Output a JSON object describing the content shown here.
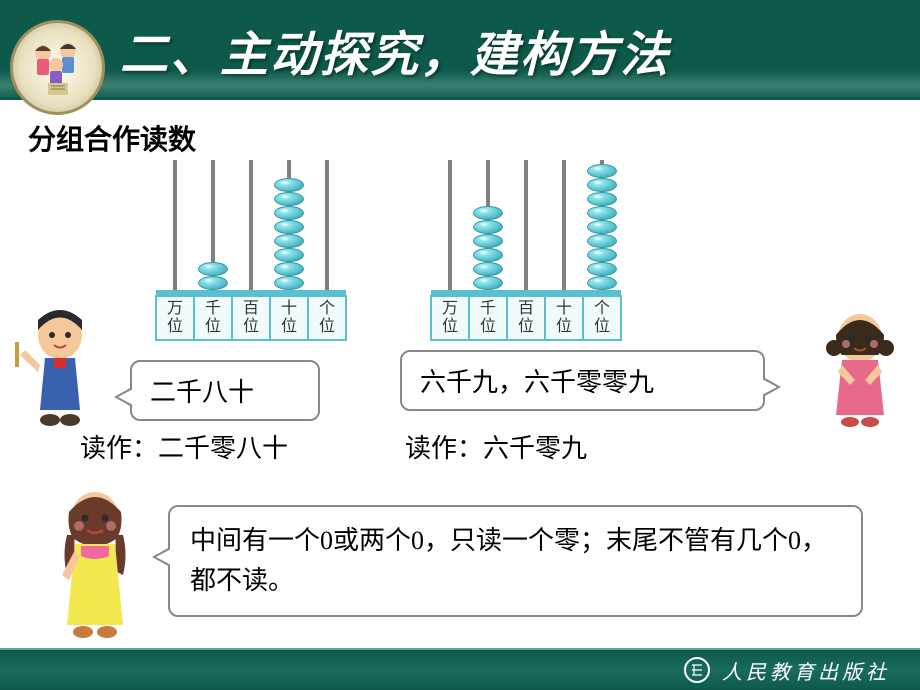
{
  "header": {
    "title": "二、主动探究，建构方法",
    "band_color": "#0d5a4a",
    "title_color": "#ffffff",
    "title_fontsize": 48
  },
  "subtitle": "分组合作读数",
  "place_labels": [
    "万位",
    "千位",
    "百位",
    "十位",
    "个位"
  ],
  "abacus_left": {
    "beads": [
      0,
      2,
      0,
      8,
      0
    ],
    "bead_color": "#4bb8c5",
    "frame_color": "#5ac0cd"
  },
  "abacus_right": {
    "beads": [
      0,
      6,
      0,
      0,
      9
    ],
    "bead_color": "#4bb8c5",
    "frame_color": "#5ac0cd"
  },
  "bubble_left": "二千八十",
  "bubble_right": "六千九，六千零零九",
  "read_left": "读作：二千零八十",
  "read_right": "读作：六千零九",
  "bubble_bottom": "中间有一个0或两个0，只读一个零；末尾不管有几个0，都不读。",
  "footer": {
    "publisher": "人民教育出版社",
    "band_color": "#0d5a4a"
  },
  "styling": {
    "body_bg": "#ffffff",
    "bubble_border": "#888888",
    "text_color": "#000000",
    "label_bg": "#f0fbfc"
  }
}
